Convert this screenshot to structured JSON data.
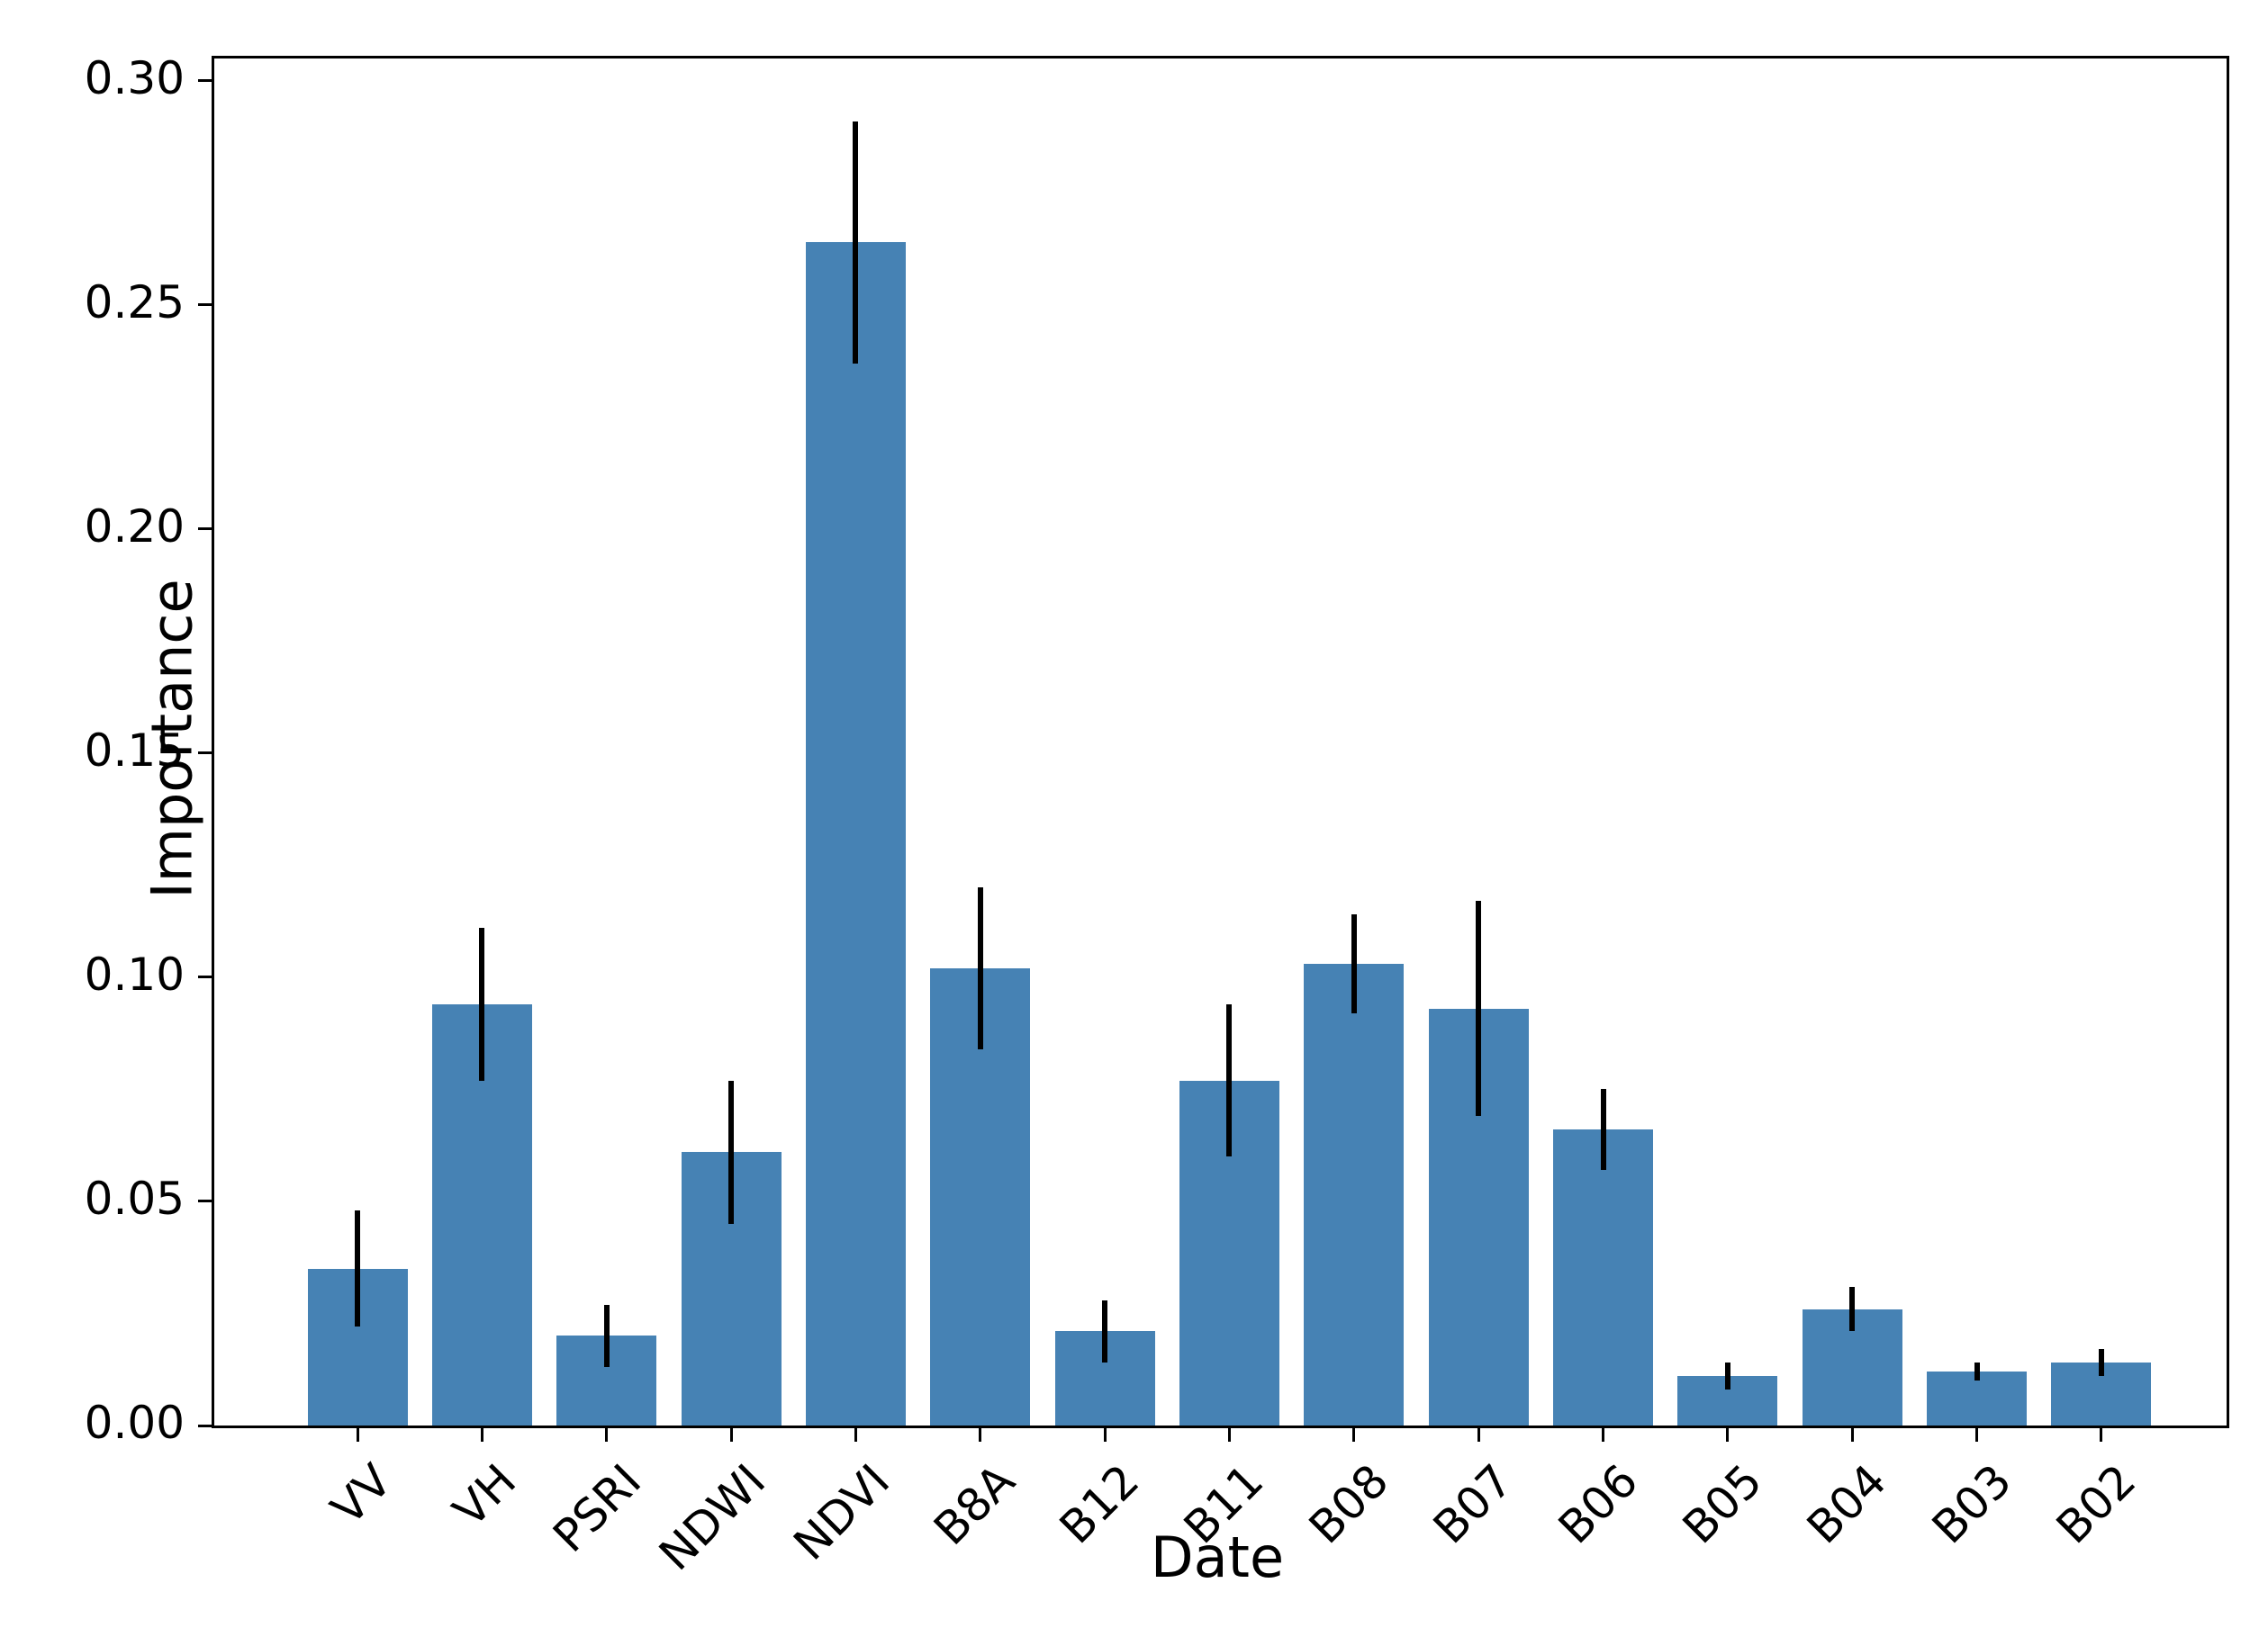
{
  "chart_data": {
    "type": "bar",
    "title": "",
    "xlabel": "Date",
    "ylabel": "Importance",
    "categories": [
      "VV",
      "VH",
      "PSRI",
      "NDWI",
      "NDVI",
      "B8A",
      "B12",
      "B11",
      "B08",
      "B07",
      "B06",
      "B05",
      "B04",
      "B03",
      "B02"
    ],
    "values": [
      0.035,
      0.094,
      0.02,
      0.061,
      0.264,
      0.102,
      0.021,
      0.077,
      0.103,
      0.093,
      0.066,
      0.011,
      0.026,
      0.012,
      0.014
    ],
    "errors": [
      0.013,
      0.017,
      0.007,
      0.016,
      0.027,
      0.018,
      0.007,
      0.017,
      0.011,
      0.024,
      0.009,
      0.003,
      0.005,
      0.002,
      0.003
    ],
    "yticks": [
      0.0,
      0.05,
      0.1,
      0.15,
      0.2,
      0.25,
      0.3
    ],
    "ytick_labels": [
      "0.00",
      "0.05",
      "0.10",
      "0.15",
      "0.20",
      "0.25",
      "0.30"
    ],
    "ylim": [
      0,
      0.305
    ],
    "grid": false,
    "legend": null,
    "bar_color": "#4682B4",
    "error_color": "#000000",
    "axis_color": "#000000",
    "background_color": "#ffffff"
  }
}
